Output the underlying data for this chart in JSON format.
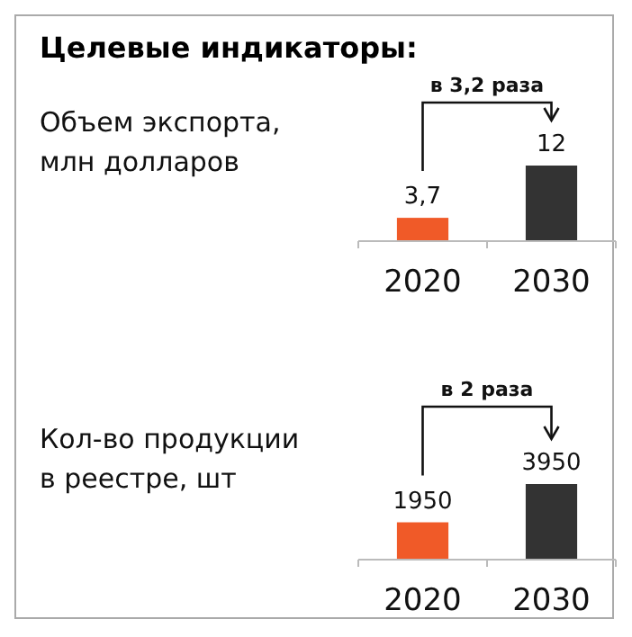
{
  "chart_data": [
    {
      "type": "bar",
      "title": "Целевые индикаторы:",
      "ylabel": "Объем экспорта, млн долларов",
      "categories": [
        "2020",
        "2030"
      ],
      "values": [
        3.7,
        12
      ],
      "value_labels": [
        "3,7",
        "12"
      ],
      "colors": [
        "#f05a28",
        "#333333"
      ],
      "annotations": [
        "в 3,2 раза"
      ]
    },
    {
      "type": "bar",
      "ylabel": "Кол-во продукции в реестре, шт",
      "categories": [
        "2020",
        "2030"
      ],
      "values": [
        1950,
        3950
      ],
      "data_labels": true,
      "colors": [
        "#f05a28",
        "#333333"
      ],
      "annotations": [
        "в 2 раза"
      ]
    }
  ]
}
